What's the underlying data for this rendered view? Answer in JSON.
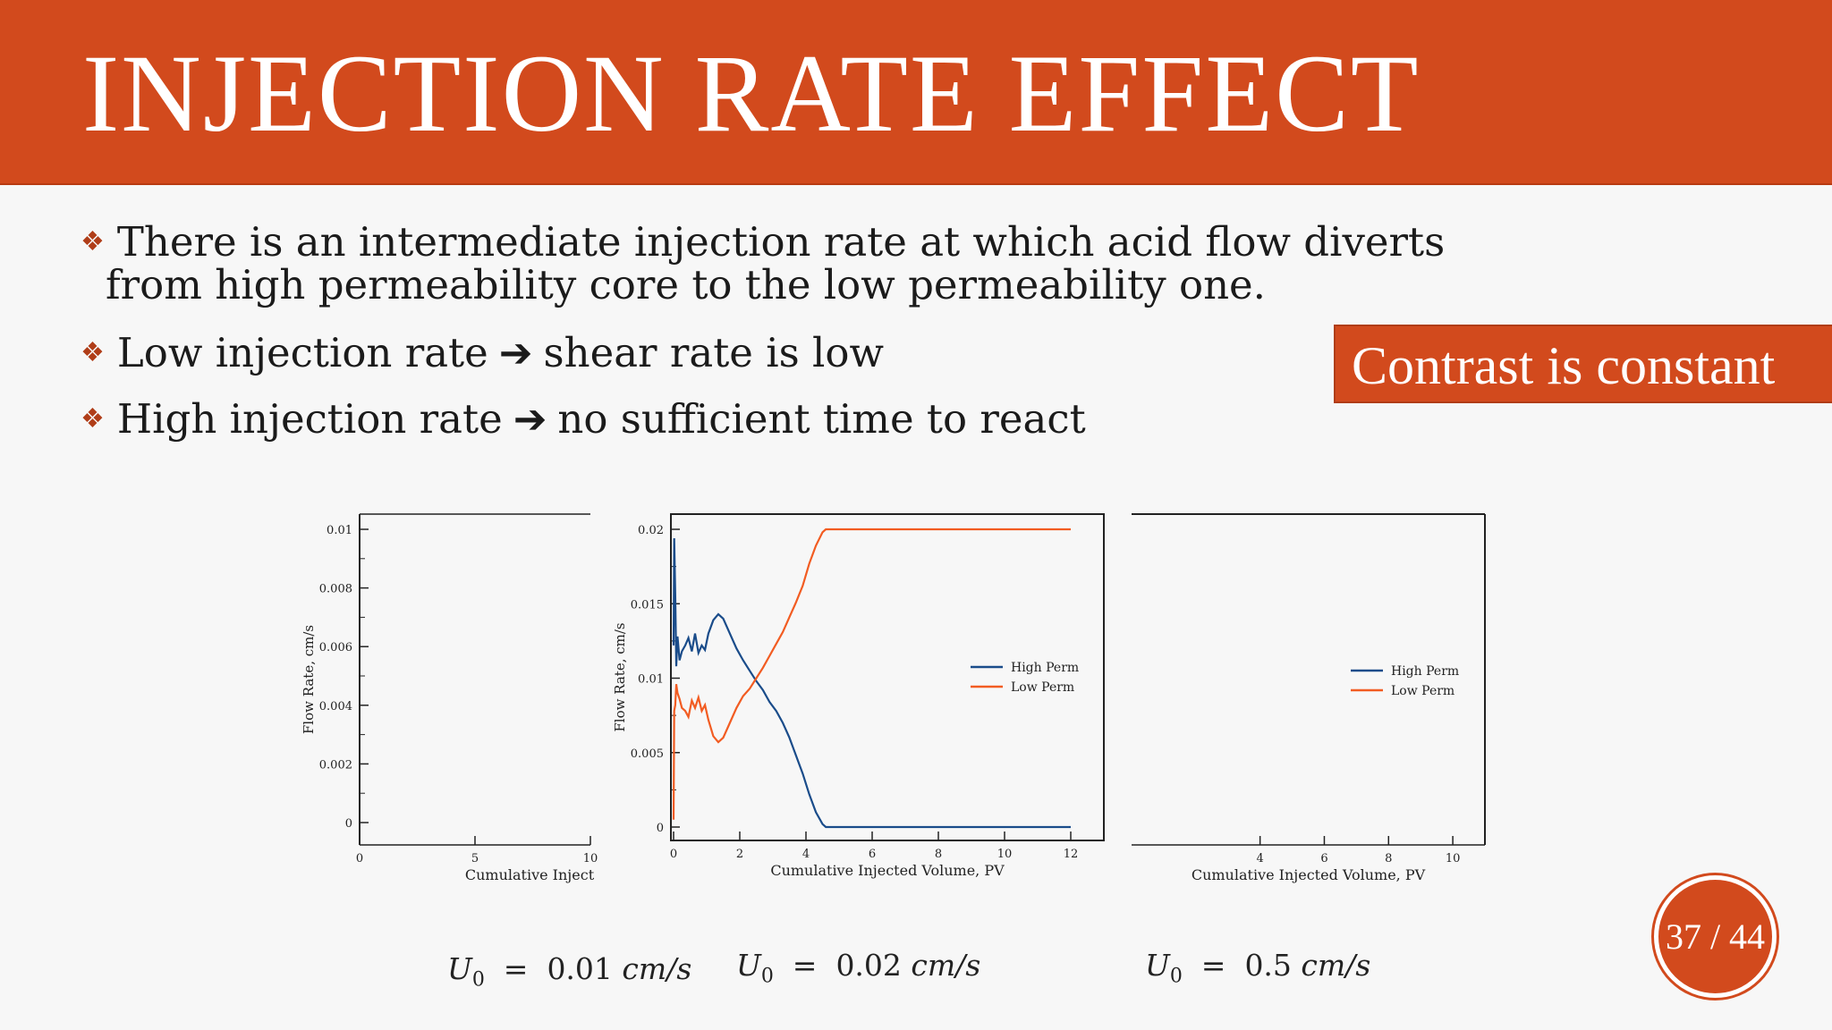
{
  "slide": {
    "title": "INJECTION RATE EFFECT",
    "bullets": [
      {
        "line1": "There is an intermediate injection rate at which acid flow diverts",
        "line2": "from high permeability core to the low permeability one."
      },
      {
        "left": "Low injection rate",
        "right": "shear rate is low"
      },
      {
        "left": "High injection rate",
        "right": "no sufficient time to react"
      }
    ],
    "callout": "Contrast is constant",
    "equations": [
      {
        "lhs": "U",
        "sub": "0",
        "eq": "=",
        "value": "0.01",
        "unit": "cm/s"
      },
      {
        "lhs": "U",
        "sub": "0",
        "eq": "=",
        "value": "0.02",
        "unit": "cm/s"
      },
      {
        "lhs": "U",
        "sub": "0",
        "eq": "=",
        "value": "0.5",
        "unit": "cm/s"
      }
    ],
    "page": "37 / 44",
    "colors": {
      "accent": "#d24a1d",
      "high_perm": "#1a4c8a",
      "low_perm": "#f25c22"
    }
  },
  "chart_data": [
    {
      "type": "line",
      "ylabel": "Flow Rate, cm/s",
      "xlabel": "Cumulative Inject",
      "xticks": [
        "0",
        "5",
        "10"
      ],
      "yticks": [
        "0",
        "0.002",
        "0.004",
        "0.006",
        "0.008",
        "0.01"
      ],
      "xlim": [
        0,
        10
      ],
      "ylim": [
        0,
        0.01
      ],
      "series": []
    },
    {
      "type": "line",
      "ylabel": "Flow Rate, cm/s",
      "xlabel": "Cumulative Injected Volume, PV",
      "xticks": [
        "0",
        "2",
        "4",
        "6",
        "8",
        "10",
        "12"
      ],
      "yticks": [
        "0",
        "0.005",
        "0.01",
        "0.015",
        "0.02"
      ],
      "xlim": [
        0,
        12
      ],
      "ylim": [
        0,
        0.02
      ],
      "legend": "right",
      "series": [
        {
          "name": "High Perm",
          "color": "#1a4c8a",
          "x": [
            0.0,
            0.02,
            0.05,
            0.08,
            0.12,
            0.18,
            0.25,
            0.35,
            0.45,
            0.55,
            0.65,
            0.75,
            0.85,
            0.95,
            1.05,
            1.2,
            1.35,
            1.5,
            1.7,
            1.9,
            2.1,
            2.3,
            2.5,
            2.7,
            2.9,
            3.1,
            3.3,
            3.5,
            3.7,
            3.9,
            4.1,
            4.3,
            4.5,
            4.6,
            5.0,
            6.0,
            8.0,
            10.0,
            12.0
          ],
          "y": [
            0.0122,
            0.0194,
            0.0155,
            0.0108,
            0.0128,
            0.0112,
            0.0118,
            0.0122,
            0.0127,
            0.0118,
            0.013,
            0.0117,
            0.0122,
            0.0119,
            0.013,
            0.0139,
            0.0143,
            0.014,
            0.013,
            0.012,
            0.0112,
            0.0105,
            0.0098,
            0.0092,
            0.0084,
            0.0078,
            0.007,
            0.006,
            0.0048,
            0.0036,
            0.0022,
            0.001,
            0.0002,
            0.0,
            0.0,
            0.0,
            0.0,
            0.0,
            0.0
          ]
        },
        {
          "name": "Low Perm",
          "color": "#f25c22",
          "x": [
            0.0,
            0.02,
            0.05,
            0.08,
            0.12,
            0.18,
            0.25,
            0.35,
            0.45,
            0.55,
            0.65,
            0.75,
            0.85,
            0.95,
            1.05,
            1.2,
            1.35,
            1.5,
            1.7,
            1.9,
            2.1,
            2.3,
            2.5,
            2.7,
            2.9,
            3.1,
            3.3,
            3.5,
            3.7,
            3.9,
            4.1,
            4.3,
            4.5,
            4.6,
            5.0,
            6.0,
            8.0,
            10.0,
            12.0
          ],
          "y": [
            0.0005,
            0.0078,
            0.0082,
            0.0096,
            0.009,
            0.0086,
            0.008,
            0.0078,
            0.0074,
            0.0085,
            0.008,
            0.0087,
            0.0078,
            0.0082,
            0.0072,
            0.0061,
            0.0057,
            0.006,
            0.007,
            0.008,
            0.0088,
            0.0093,
            0.01,
            0.0107,
            0.0115,
            0.0123,
            0.0131,
            0.0141,
            0.0151,
            0.0162,
            0.0177,
            0.0189,
            0.0198,
            0.02,
            0.02,
            0.02,
            0.02,
            0.02,
            0.02
          ]
        }
      ]
    },
    {
      "type": "line",
      "xlabel": "Cumulative Injected Volume, PV",
      "xticks": [
        "4",
        "6",
        "8",
        "10"
      ],
      "xlim": [
        0,
        11
      ],
      "legend": "right",
      "series": [
        {
          "name": "High Perm",
          "color": "#1a4c8a",
          "x": [],
          "y": []
        },
        {
          "name": "Low Perm",
          "color": "#f25c22",
          "x": [],
          "y": []
        }
      ]
    }
  ]
}
